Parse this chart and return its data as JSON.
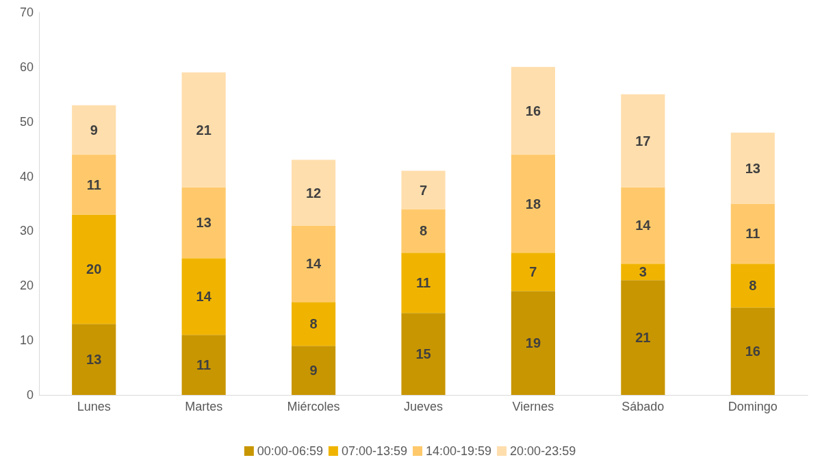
{
  "chart_data": {
    "type": "bar",
    "stacked": true,
    "categories": [
      "Lunes",
      "Martes",
      "Miércoles",
      "Jueves",
      "Viernes",
      "Sábado",
      "Domingo"
    ],
    "series": [
      {
        "name": "00:00-06:59",
        "color": "#c89600",
        "values": [
          13,
          11,
          9,
          15,
          19,
          21,
          16
        ]
      },
      {
        "name": "07:00-13:59",
        "color": "#f0b400",
        "values": [
          20,
          14,
          8,
          11,
          7,
          3,
          8
        ]
      },
      {
        "name": "14:00-19:59",
        "color": "#ffc96b",
        "values": [
          11,
          13,
          14,
          8,
          18,
          14,
          11
        ]
      },
      {
        "name": "20:00-23:59",
        "color": "#ffdead",
        "values": [
          9,
          21,
          12,
          7,
          16,
          17,
          13
        ]
      }
    ],
    "ylim": [
      0,
      70
    ],
    "yticks": [
      0,
      10,
      20,
      30,
      40,
      50,
      60,
      70
    ],
    "grid": false,
    "legend": "bottom",
    "data_labels": true
  }
}
